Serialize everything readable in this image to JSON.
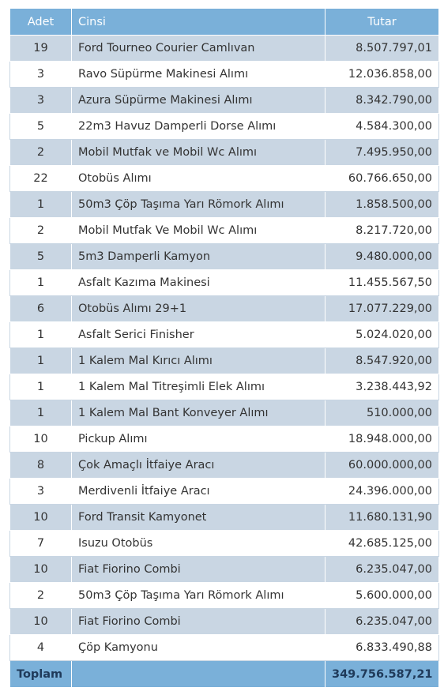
{
  "table": {
    "headers": {
      "adet": "Adet",
      "cinsi": "Cinsi",
      "tutar": "Tutar"
    },
    "rows": [
      {
        "adet": "19",
        "cinsi": "Ford Tourneo Courier Camlıvan",
        "tutar": "8.507.797,01"
      },
      {
        "adet": "3",
        "cinsi": "Ravo Süpürme Makinesi Alımı",
        "tutar": "12.036.858,00"
      },
      {
        "adet": "3",
        "cinsi": "Azura Süpürme Makinesi Alımı",
        "tutar": "8.342.790,00"
      },
      {
        "adet": "5",
        "cinsi": "22m3 Havuz Damperli Dorse Alımı",
        "tutar": "4.584.300,00"
      },
      {
        "adet": "2",
        "cinsi": "Mobil Mutfak ve Mobil Wc Alımı",
        "tutar": "7.495.950,00"
      },
      {
        "adet": "22",
        "cinsi": "Otobüs Alımı",
        "tutar": "60.766.650,00"
      },
      {
        "adet": "1",
        "cinsi": "50m3 Çöp Taşıma Yarı Römork Alımı",
        "tutar": "1.858.500,00"
      },
      {
        "adet": "2",
        "cinsi": "Mobil Mutfak Ve Mobil Wc Alımı",
        "tutar": "8.217.720,00"
      },
      {
        "adet": "5",
        "cinsi": "5m3 Damperli Kamyon",
        "tutar": "9.480.000,00"
      },
      {
        "adet": "1",
        "cinsi": "Asfalt Kazıma Makinesi",
        "tutar": "11.455.567,50"
      },
      {
        "adet": "6",
        "cinsi": "Otobüs Alımı 29+1",
        "tutar": "17.077.229,00"
      },
      {
        "adet": "1",
        "cinsi": "Asfalt Serici Finisher",
        "tutar": "5.024.020,00"
      },
      {
        "adet": "1",
        "cinsi": "1 Kalem Mal Kırıcı Alımı",
        "tutar": "8.547.920,00"
      },
      {
        "adet": "1",
        "cinsi": "1 Kalem Mal Titreşimli Elek Alımı",
        "tutar": "3.238.443,92"
      },
      {
        "adet": "1",
        "cinsi": "1 Kalem Mal Bant Konveyer Alımı",
        "tutar": "510.000,00"
      },
      {
        "adet": "10",
        "cinsi": "Pickup Alımı",
        "tutar": "18.948.000,00"
      },
      {
        "adet": "8",
        "cinsi": "Çok Amaçlı İtfaiye Aracı",
        "tutar": "60.000.000,00"
      },
      {
        "adet": "3",
        "cinsi": "Merdivenli İtfaiye Aracı",
        "tutar": "24.396.000,00"
      },
      {
        "adet": "10",
        "cinsi": "Ford Transit Kamyonet",
        "tutar": "11.680.131,90"
      },
      {
        "adet": "7",
        "cinsi": "Isuzu Otobüs",
        "tutar": "42.685.125,00"
      },
      {
        "adet": "10",
        "cinsi": "Fiat Fiorino Combi",
        "tutar": "6.235.047,00"
      },
      {
        "adet": "2",
        "cinsi": "50m3 Çöp Taşıma Yarı Römork Alımı",
        "tutar": "5.600.000,00"
      },
      {
        "adet": "10",
        "cinsi": "Fiat Fiorino Combi",
        "tutar": "6.235.047,00"
      },
      {
        "adet": "4",
        "cinsi": "Çöp Kamyonu",
        "tutar": "6.833.490,88"
      }
    ],
    "footer": {
      "label": "Toplam",
      "value": "349.756.587,21"
    }
  },
  "colors": {
    "header_bg": "#7ab0d9",
    "row_alt_bg": "#c9d6e3",
    "row_bg": "#ffffff"
  }
}
